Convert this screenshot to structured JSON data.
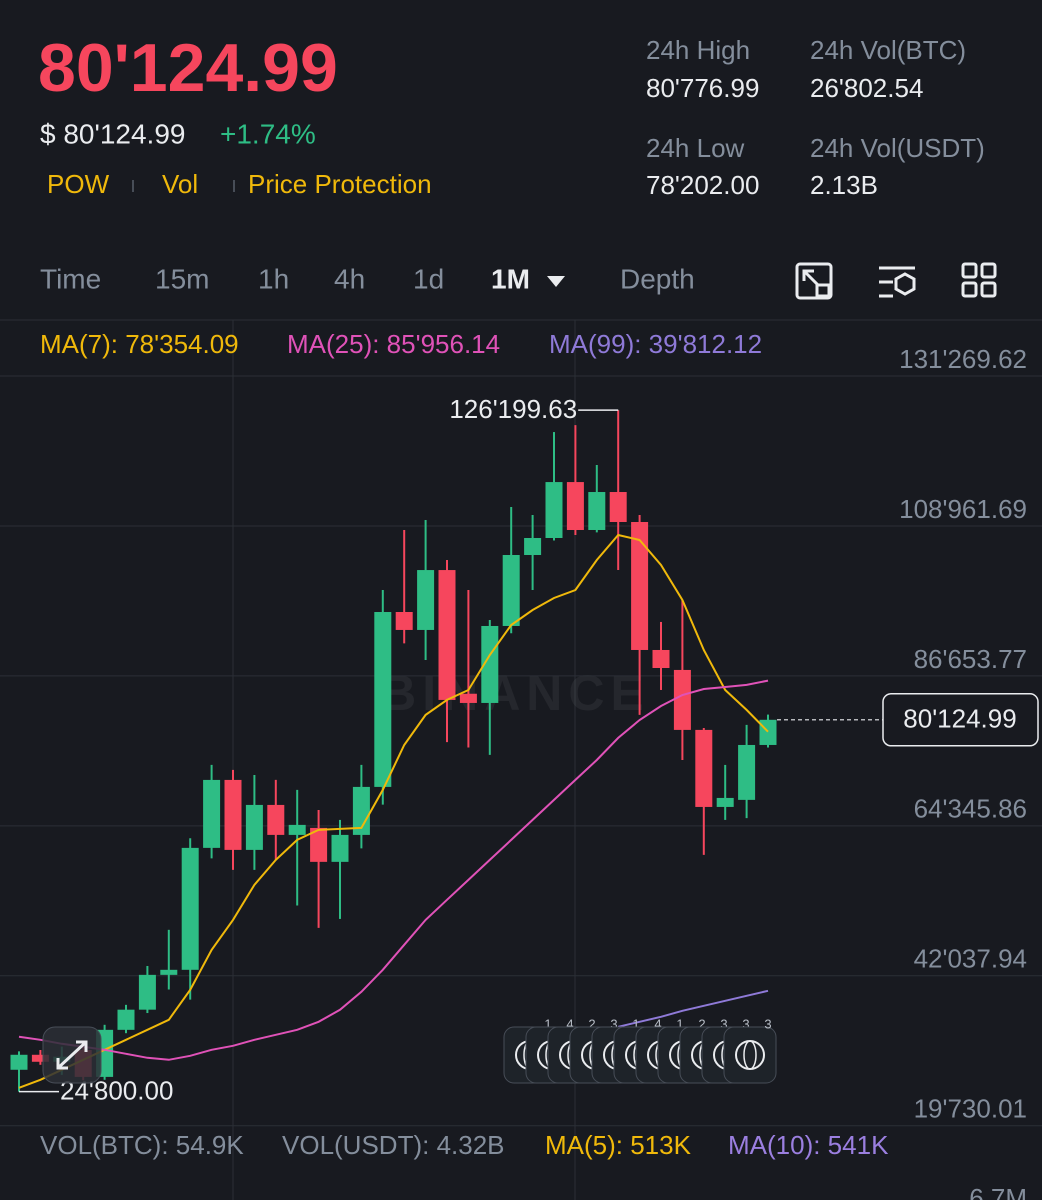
{
  "header": {
    "price": "80'124.99",
    "usd_price": "$ 80'124.99",
    "change": "+1.74%",
    "tags": [
      "POW",
      "Vol",
      "Price Protection"
    ]
  },
  "stats": [
    {
      "label": "24h High",
      "value": "80'776.99"
    },
    {
      "label": "24h Vol(BTC)",
      "value": "26'802.54"
    },
    {
      "label": "24h Low",
      "value": "78'202.00"
    },
    {
      "label": "24h Vol(USDT)",
      "value": "2.13B"
    }
  ],
  "tabs": [
    "Time",
    "15m",
    "1h",
    "4h",
    "1d",
    "1M",
    "Depth"
  ],
  "active_tab": "1M",
  "chart_data": {
    "type": "candlestick",
    "watermark": "BINANCE",
    "up_color": "#2ebd85",
    "down_color": "#f6465d",
    "grid": true,
    "ylim": [
      19100,
      139600
    ],
    "yticks": [
      {
        "value": 19730.01,
        "label": "19'730.01"
      },
      {
        "value": 42037.94,
        "label": "42'037.94"
      },
      {
        "value": 64345.86,
        "label": "64'345.86"
      },
      {
        "value": 86653.77,
        "label": "86'653.77"
      },
      {
        "value": 108961.69,
        "label": "108'961.69"
      },
      {
        "value": 131269.62,
        "label": "131'269.62"
      }
    ],
    "candles": [
      {
        "open": 28060,
        "high": 30800,
        "low": 24800,
        "close": 30290
      },
      {
        "open": 30290,
        "high": 31000,
        "low": 28800,
        "close": 29250
      },
      {
        "open": 29250,
        "high": 31500,
        "low": 27300,
        "close": 30000
      },
      {
        "open": 31000,
        "high": 31770,
        "low": 26500,
        "close": 27000
      },
      {
        "open": 27000,
        "high": 34750,
        "low": 26570,
        "close": 34000
      },
      {
        "open": 34000,
        "high": 37720,
        "low": 33500,
        "close": 37000
      },
      {
        "open": 37000,
        "high": 43500,
        "low": 36500,
        "close": 42180
      },
      {
        "open": 42180,
        "high": 48880,
        "low": 40000,
        "close": 42930
      },
      {
        "open": 42930,
        "high": 62500,
        "low": 38500,
        "close": 61070
      },
      {
        "open": 61070,
        "high": 73410,
        "low": 59500,
        "close": 71180
      },
      {
        "open": 71180,
        "high": 72670,
        "low": 57800,
        "close": 60770
      },
      {
        "open": 60770,
        "high": 71920,
        "low": 57800,
        "close": 67460
      },
      {
        "open": 67460,
        "high": 71180,
        "low": 59280,
        "close": 63000
      },
      {
        "open": 63000,
        "high": 69690,
        "low": 52500,
        "close": 64490
      },
      {
        "open": 64040,
        "high": 66700,
        "low": 49170,
        "close": 58990
      },
      {
        "open": 58990,
        "high": 65230,
        "low": 50500,
        "close": 63000
      },
      {
        "open": 63000,
        "high": 73410,
        "low": 61000,
        "close": 70140
      },
      {
        "open": 70140,
        "high": 99430,
        "low": 67500,
        "close": 96160
      },
      {
        "open": 96160,
        "high": 108360,
        "low": 91500,
        "close": 93490
      },
      {
        "open": 93490,
        "high": 109840,
        "low": 89020,
        "close": 102400
      },
      {
        "open": 102400,
        "high": 103900,
        "low": 76800,
        "close": 83080
      },
      {
        "open": 84000,
        "high": 99430,
        "low": 76000,
        "close": 82630
      },
      {
        "open": 82630,
        "high": 94970,
        "low": 74900,
        "close": 94080
      },
      {
        "open": 94080,
        "high": 111780,
        "low": 93000,
        "close": 104640
      },
      {
        "open": 104640,
        "high": 110590,
        "low": 99430,
        "close": 107170
      },
      {
        "open": 107170,
        "high": 122930,
        "low": 106800,
        "close": 115490
      },
      {
        "open": 115490,
        "high": 123970,
        "low": 107610,
        "close": 108360
      },
      {
        "open": 108360,
        "high": 118020,
        "low": 108000,
        "close": 114010
      },
      {
        "open": 114010,
        "high": 126199.63,
        "low": 102400,
        "close": 109550
      },
      {
        "open": 109550,
        "high": 110590,
        "low": 80850,
        "close": 90510
      },
      {
        "open": 90510,
        "high": 94680,
        "low": 84560,
        "close": 87830
      },
      {
        "open": 87540,
        "high": 97950,
        "low": 74150,
        "close": 78620
      },
      {
        "open": 78620,
        "high": 78900,
        "low": 60030,
        "close": 67160
      },
      {
        "open": 67160,
        "high": 73410,
        "low": 65230,
        "close": 68500
      },
      {
        "open": 68210,
        "high": 79360,
        "low": 65500,
        "close": 76380
      },
      {
        "open": 76380,
        "high": 80900,
        "low": 76000,
        "close": 80124.99
      }
    ],
    "series": [
      {
        "name": "MA(7): 78'354.09",
        "color": "#f0b90b",
        "values": [
          25380,
          26570,
          28060,
          29540,
          31030,
          32520,
          34010,
          35490,
          39950,
          45900,
          50360,
          55570,
          59280,
          62250,
          63740,
          63900,
          64040,
          69690,
          76380,
          80850,
          83080,
          84560,
          89770,
          94230,
          96460,
          98240,
          99430,
          103900,
          107610,
          106870,
          103150,
          97950,
          90510,
          84560,
          81590,
          78354.09
        ]
      },
      {
        "name": "MA(25): 85'956.14",
        "color": "#e052b8",
        "values": [
          32970,
          32520,
          31920,
          31480,
          31030,
          30440,
          29840,
          29540,
          30140,
          31030,
          31630,
          32520,
          33260,
          34010,
          35200,
          36980,
          39660,
          42930,
          46650,
          50360,
          53340,
          56310,
          59280,
          62250,
          65230,
          68210,
          71180,
          74150,
          77430,
          80100,
          82180,
          83820,
          84710,
          85010,
          85310,
          85956.14
        ]
      },
      {
        "name": "MA(99): 39'812.12",
        "color": "#8f7ad8",
        "values": [
          null,
          null,
          null,
          null,
          null,
          null,
          null,
          null,
          null,
          null,
          null,
          null,
          null,
          null,
          null,
          null,
          null,
          null,
          null,
          null,
          null,
          null,
          null,
          null,
          null,
          null,
          null,
          null,
          34450,
          35200,
          35940,
          36830,
          37570,
          38320,
          39060,
          39812.12
        ]
      }
    ],
    "max_label": "126'199.63",
    "min_label": "24'800.00",
    "last_price_label": "80'124.99",
    "event_counts": [
      "1",
      "4",
      "2",
      "3",
      "1",
      "4",
      "1",
      "2",
      "3",
      "3",
      "3"
    ]
  },
  "volume": {
    "legend": [
      {
        "text": "VOL(BTC): 54.9K",
        "color": "#848e9c"
      },
      {
        "text": "VOL(USDT): 4.32B",
        "color": "#848e9c"
      },
      {
        "text": "MA(5): 513K",
        "color": "#f0b90b"
      },
      {
        "text": "MA(10): 541K",
        "color": "#9b7fe0"
      }
    ],
    "ytick": "6.7M"
  }
}
